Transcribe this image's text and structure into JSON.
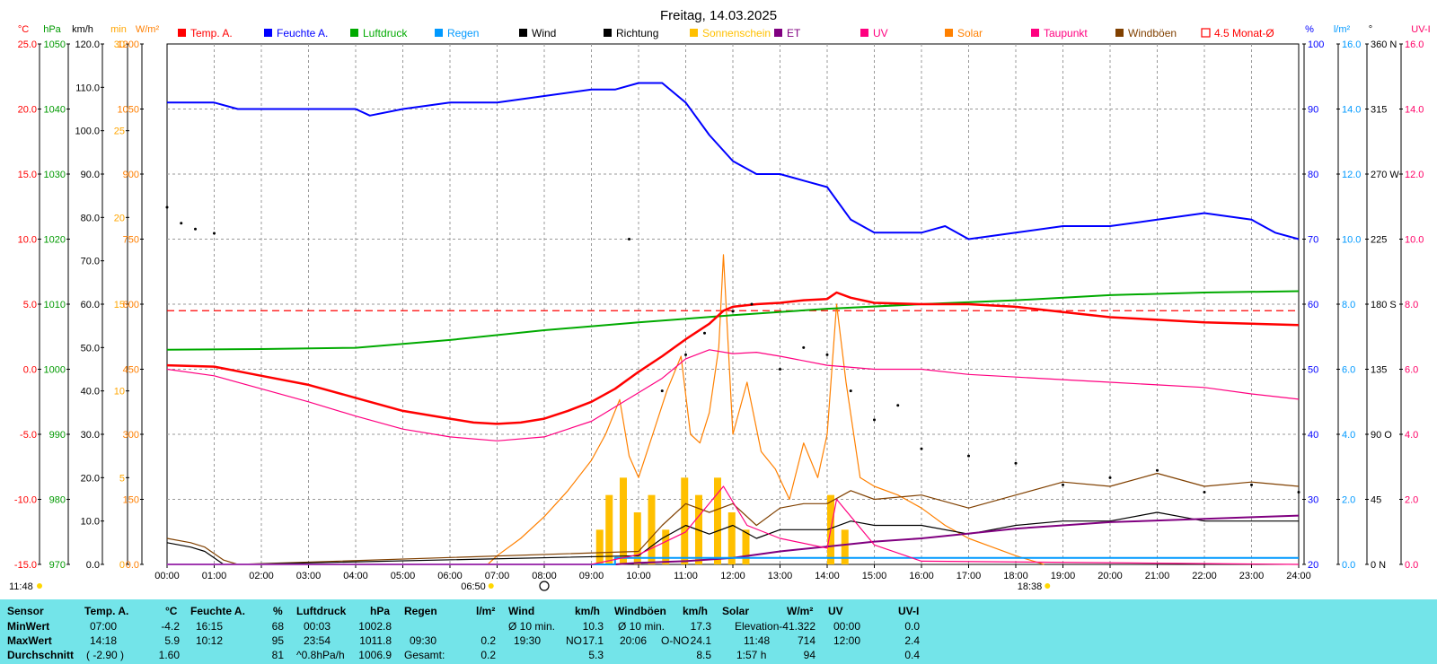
{
  "chart_data": {
    "type": "line",
    "title": "Freitag, 14.03.2025",
    "x_ticks": [
      "00:00",
      "01:00",
      "02:00",
      "03:00",
      "04:00",
      "05:00",
      "06:00",
      "07:00",
      "08:00",
      "09:00",
      "10:00",
      "11:00",
      "12:00",
      "13:00",
      "14:00",
      "15:00",
      "16:00",
      "17:00",
      "18:00",
      "19:00",
      "20:00",
      "21:00",
      "22:00",
      "23:00",
      "24:00"
    ],
    "sunrise_label": "06:50",
    "sunset_label": "18:38",
    "solar_noon_label": "11:48",
    "reference_line": {
      "name": "4.5 Monat-Ø",
      "temp_value": 4.5
    },
    "axes": {
      "temp": {
        "unit": "°C",
        "range": [
          -15,
          25
        ],
        "ticks": [
          "25.0",
          "20.0",
          "15.0",
          "10.0",
          "5.0",
          "0.0",
          "-5.0",
          "-10.0",
          "-15.0"
        ],
        "color": "#ff0000"
      },
      "pressure": {
        "unit": "hPa",
        "range": [
          970,
          1050
        ],
        "ticks": [
          "1050",
          "1040",
          "1030",
          "1020",
          "1010",
          "1000",
          "990",
          "980",
          "970"
        ],
        "color": "#009900"
      },
      "wind": {
        "unit": "km/h",
        "range": [
          0,
          120
        ],
        "ticks": [
          "120.0",
          "110.0",
          "100.0",
          "90.0",
          "80.0",
          "70.0",
          "60.0",
          "50.0",
          "40.0",
          "30.0",
          "20.0",
          "10.0",
          "0.0"
        ],
        "color": "#000000"
      },
      "sunshine": {
        "unit": "min",
        "range": [
          0,
          30
        ],
        "ticks": [
          "30",
          "25",
          "20",
          "15",
          "10",
          "5",
          "0"
        ],
        "color": "#ffa500"
      },
      "solar": {
        "unit": "W/m²",
        "range": [
          0,
          1200
        ],
        "ticks": [
          "1200",
          "1050",
          "900",
          "750",
          "600",
          "450",
          "300",
          "150",
          "0.0"
        ],
        "color": "#ff7f00"
      },
      "humidity": {
        "unit": "%",
        "range": [
          20,
          100
        ],
        "ticks": [
          "100",
          "90",
          "80",
          "70",
          "60",
          "50",
          "40",
          "30",
          "20"
        ],
        "color": "#0000ff"
      },
      "rain": {
        "unit": "l/m²",
        "range": [
          0,
          16
        ],
        "ticks": [
          "16.0",
          "14.0",
          "12.0",
          "10.0",
          "8.0",
          "6.0",
          "4.0",
          "2.0",
          "0.0"
        ],
        "color": "#0099ff"
      },
      "direction": {
        "unit": "°",
        "range": [
          0,
          360
        ],
        "ticks": [
          "360 N",
          "315",
          "270 W",
          "225",
          "180 S",
          "135",
          "90 O",
          "45",
          "0 N"
        ],
        "color": "#000000"
      },
      "uv": {
        "unit": "UV-I",
        "range": [
          0,
          16
        ],
        "ticks": [
          "16.0",
          "14.0",
          "12.0",
          "10.0",
          "8.0",
          "6.0",
          "4.0",
          "2.0",
          "0.0"
        ],
        "color": "#ff0066"
      }
    },
    "legend": [
      {
        "name": "Temp. A.",
        "color": "#ff0000"
      },
      {
        "name": "Feuchte A.",
        "color": "#0000ff"
      },
      {
        "name": "Luftdruck",
        "color": "#00aa00"
      },
      {
        "name": "Regen",
        "color": "#0099ff"
      },
      {
        "name": "Wind",
        "color": "#000000"
      },
      {
        "name": "Richtung",
        "color": "#000000"
      },
      {
        "name": "Sonnenschein",
        "color": "#ffc000"
      },
      {
        "name": "ET",
        "color": "#800080"
      },
      {
        "name": "UV",
        "color": "#ff0080"
      },
      {
        "name": "Solar",
        "color": "#ff8000"
      },
      {
        "name": "Taupunkt",
        "color": "#ff0080"
      },
      {
        "name": "Windböen",
        "color": "#804000"
      },
      {
        "name": "4.5 Monat-Ø",
        "color": "#ff0000"
      }
    ],
    "series": {
      "temp": {
        "x": [
          0,
          1,
          2,
          3,
          4,
          5,
          6,
          6.5,
          7,
          7.5,
          8,
          8.5,
          9,
          9.5,
          10,
          10.5,
          11,
          11.5,
          11.8,
          12,
          12.5,
          13,
          13.5,
          14,
          14.2,
          14.5,
          15,
          16,
          17,
          18,
          19,
          20,
          21,
          22,
          23,
          24
        ],
        "y": [
          0.3,
          0.2,
          -0.5,
          -1.2,
          -2.2,
          -3.2,
          -3.8,
          -4.1,
          -4.2,
          -4.1,
          -3.8,
          -3.2,
          -2.5,
          -1.5,
          -0.2,
          1.0,
          2.3,
          3.5,
          4.5,
          4.8,
          5.0,
          5.1,
          5.3,
          5.4,
          5.9,
          5.5,
          5.1,
          5.0,
          5.0,
          4.8,
          4.4,
          4.0,
          3.8,
          3.6,
          3.5,
          3.4
        ]
      },
      "dewpoint": {
        "x": [
          0,
          1,
          2,
          3,
          4,
          5,
          6,
          7,
          8,
          9,
          10,
          10.5,
          11,
          11.5,
          12,
          12.5,
          13,
          14,
          15,
          16,
          17,
          18,
          19,
          20,
          21,
          22,
          23,
          24
        ],
        "y": [
          0.0,
          -0.5,
          -1.5,
          -2.5,
          -3.6,
          -4.6,
          -5.2,
          -5.5,
          -5.2,
          -4.0,
          -1.8,
          -0.7,
          0.8,
          1.5,
          1.2,
          1.3,
          1.0,
          0.3,
          0.0,
          0.0,
          -0.4,
          -0.6,
          -0.8,
          -1.0,
          -1.2,
          -1.4,
          -1.9,
          -2.3
        ]
      },
      "humidity": {
        "x": [
          0,
          1,
          1.5,
          2,
          3,
          4,
          4.3,
          5,
          6,
          7,
          8,
          9,
          9.5,
          10,
          10.5,
          11,
          11.5,
          12,
          12.5,
          13,
          13.5,
          14,
          14.5,
          15,
          16,
          16.5,
          17,
          18,
          19,
          20,
          21,
          22,
          23,
          23.5,
          24
        ],
        "y": [
          91,
          91,
          90,
          90,
          90,
          90,
          89,
          90,
          91,
          91,
          92,
          93,
          93,
          94,
          94,
          91,
          86,
          82,
          80,
          80,
          79,
          78,
          73,
          71,
          71,
          72,
          70,
          71,
          72,
          72,
          73,
          74,
          73,
          71,
          70
        ]
      },
      "pressure": {
        "x": [
          0,
          2,
          4,
          6,
          8,
          10,
          12,
          14,
          16,
          18,
          20,
          22,
          24
        ],
        "y": [
          1003.0,
          1003.1,
          1003.3,
          1004.5,
          1006.0,
          1007.2,
          1008.3,
          1009.3,
          1010.0,
          1010.6,
          1011.4,
          1011.8,
          1012.0
        ]
      },
      "solar": {
        "x": [
          6.8,
          7,
          7.5,
          8,
          8.5,
          9,
          9.3,
          9.6,
          9.8,
          10,
          10.3,
          10.6,
          10.9,
          11.1,
          11.3,
          11.5,
          11.7,
          11.8,
          12,
          12.3,
          12.6,
          12.9,
          13.2,
          13.5,
          13.8,
          14,
          14.2,
          14.4,
          14.7,
          15,
          15.5,
          16,
          16.5,
          17,
          17.5,
          18,
          18.3,
          18.6
        ],
        "y": [
          0,
          20,
          60,
          110,
          170,
          240,
          300,
          380,
          250,
          200,
          300,
          400,
          480,
          300,
          280,
          350,
          500,
          714,
          300,
          420,
          260,
          220,
          150,
          280,
          200,
          300,
          600,
          420,
          200,
          180,
          160,
          130,
          90,
          60,
          40,
          20,
          10,
          0
        ]
      },
      "wind": {
        "x": [
          0,
          0.5,
          0.8,
          1.2,
          1.5,
          10,
          10.5,
          11,
          11.5,
          12,
          12.5,
          13,
          13.5,
          14,
          14.5,
          15,
          16,
          17,
          18,
          19,
          20,
          21,
          22,
          23,
          24
        ],
        "y": [
          5,
          4,
          3,
          0,
          0,
          2,
          6,
          9,
          7,
          9,
          6,
          8,
          8,
          8,
          10,
          9,
          9,
          7,
          9,
          10,
          10,
          12,
          10,
          10,
          10
        ]
      },
      "gusts": {
        "x": [
          0,
          0.5,
          0.8,
          1.2,
          1.5,
          10,
          10.5,
          11,
          11.5,
          12,
          12.5,
          13,
          13.5,
          14,
          14.5,
          15,
          16,
          17,
          18,
          19,
          20,
          21,
          22,
          23,
          24
        ],
        "y": [
          6,
          5,
          4,
          1,
          0,
          3,
          9,
          14,
          12,
          14,
          9,
          13,
          14,
          14,
          17,
          15,
          16,
          13,
          16,
          19,
          18,
          21,
          18,
          19,
          18
        ]
      },
      "sunshine": {
        "x": [
          9.1,
          9.3,
          9.6,
          9.9,
          10.2,
          10.5,
          10.9,
          11.2,
          11.6,
          11.9,
          12.2,
          12.5,
          14.0,
          14.3
        ],
        "y": [
          2,
          4,
          5,
          3,
          4,
          2,
          5,
          4,
          5,
          3,
          2,
          0,
          4,
          2
        ]
      },
      "et": {
        "x": [
          0,
          9.5,
          10,
          11,
          12,
          13,
          14,
          15,
          16,
          17,
          18,
          19,
          20,
          21,
          22,
          23,
          24
        ],
        "y": [
          0,
          0,
          0.05,
          0.1,
          0.2,
          0.4,
          0.55,
          0.7,
          0.8,
          0.95,
          1.1,
          1.2,
          1.3,
          1.35,
          1.4,
          1.45,
          1.5
        ]
      },
      "rain": {
        "x": [
          0,
          9.5,
          9.5,
          24
        ],
        "y": [
          0,
          0,
          0.2,
          0.2
        ]
      },
      "uv": {
        "x": [
          0,
          9,
          10,
          11,
          11.8,
          12.3,
          13,
          14,
          14.2,
          15,
          16,
          24
        ],
        "y": [
          0,
          0,
          0.3,
          1.0,
          2.4,
          1.2,
          0.8,
          0.5,
          2.0,
          0.6,
          0.1,
          0
        ]
      },
      "direction": {
        "x": [
          0,
          0.3,
          0.6,
          1.0,
          9.8,
          10.5,
          11,
          11.4,
          12,
          12.4,
          13,
          13.5,
          14,
          14.5,
          15,
          15.5,
          16,
          17,
          18,
          19,
          20,
          21,
          22,
          23,
          24
        ],
        "y": [
          247,
          236,
          232,
          229,
          225,
          120,
          145,
          160,
          175,
          180,
          135,
          150,
          145,
          120,
          100,
          110,
          80,
          75,
          70,
          55,
          60,
          65,
          50,
          55,
          50
        ]
      }
    }
  },
  "stats": {
    "labels": {
      "sensor": "Sensor",
      "min": "MinWert",
      "max": "MaxWert",
      "avg": "Durchschnitt"
    },
    "temp": {
      "title": "Temp. A.",
      "unit": "°C",
      "min_time": "07:00",
      "min_val": "-4.2",
      "max_time": "14:18",
      "max_val": "5.9",
      "avg_extra": "( -2.90 )",
      "avg_val": "1.60"
    },
    "humidity": {
      "title": "Feuchte A.",
      "unit": "%",
      "min_time": "16:15",
      "min_val": "68",
      "max_time": "10:12",
      "max_val": "95",
      "avg_val": "81"
    },
    "pressure": {
      "title": "Luftdruck",
      "unit": "hPa",
      "min_time": "00:03",
      "min_val": "1002.8",
      "max_time": "23:54",
      "max_val": "1011.8",
      "avg_extra": "^0.8hPa/h",
      "avg_val": "1006.9"
    },
    "rain": {
      "title": "Regen",
      "unit": "l/m²",
      "max_time": "09:30",
      "max_val": "0.2",
      "avg_label": "Gesamt:",
      "avg_val": "0.2"
    },
    "wind": {
      "title": "Wind",
      "unit": "km/h",
      "min_label": "Ø 10 min.",
      "min_val": "10.3",
      "max_time": "19:30",
      "max_dir": "NO",
      "max_val": "17.1",
      "avg_val": "5.3"
    },
    "gusts": {
      "title": "Windböen",
      "unit": "km/h",
      "min_label": "Ø 10 min.",
      "min_val": "17.3",
      "max_time": "20:06",
      "max_dir": "O-NO",
      "max_val": "24.1",
      "avg_val": "8.5"
    },
    "solar": {
      "title": "Solar",
      "unit": "W/m²",
      "min_label": "Elevation",
      "min_val": "-41.322",
      "max_time": "11:48",
      "max_val": "714",
      "avg_label": "1:57 h",
      "avg_val": "94"
    },
    "uv": {
      "title": "UV",
      "unit": "UV-I",
      "min_time": "00:00",
      "min_val": "0.0",
      "max_time": "12:00",
      "max_val": "2.4",
      "avg_val": "0.4"
    }
  }
}
